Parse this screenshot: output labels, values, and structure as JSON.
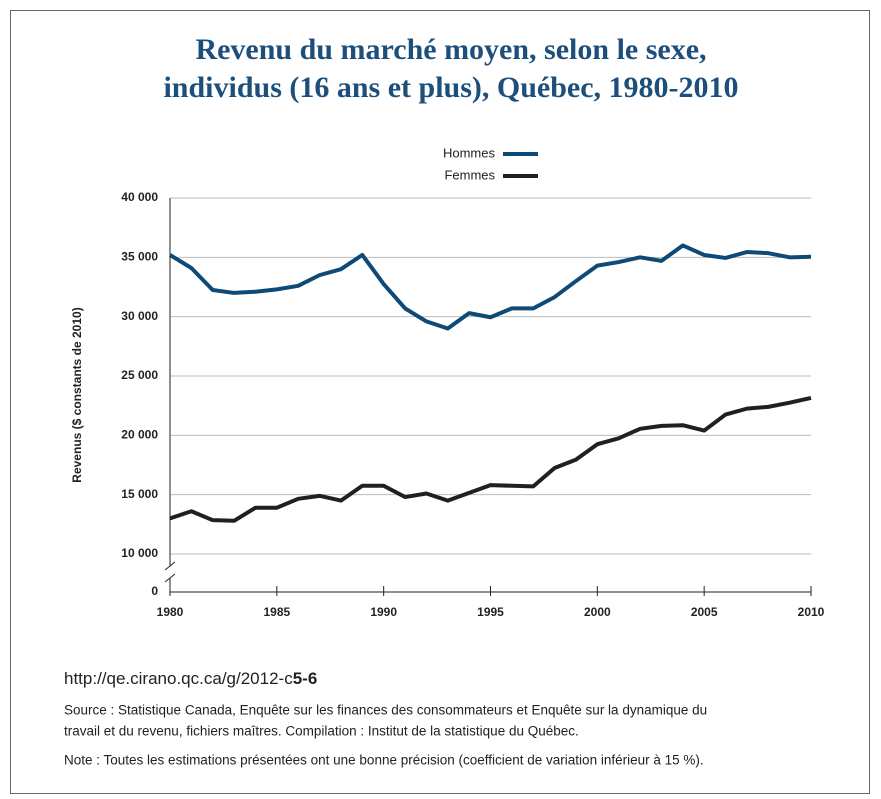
{
  "chart_data": {
    "type": "line",
    "title": [
      "Revenu du marché moyen, selon le sexe,",
      "individus (16 ans et plus), Québec, 1980-2010"
    ],
    "ylabel": "Revenus ($ constants de 2010)",
    "x": [
      1980,
      1981,
      1982,
      1983,
      1984,
      1985,
      1986,
      1987,
      1988,
      1989,
      1990,
      1991,
      1992,
      1993,
      1994,
      1995,
      1996,
      1997,
      1998,
      1999,
      2000,
      2001,
      2002,
      2003,
      2004,
      2005,
      2006,
      2007,
      2008,
      2009,
      2010
    ],
    "series": [
      {
        "name": "Hommes",
        "color": "#0e4a75",
        "values": [
          35200,
          34100,
          32250,
          32000,
          32100,
          32300,
          32600,
          33500,
          34000,
          35200,
          32750,
          30700,
          29600,
          29000,
          30300,
          29950,
          30700,
          30700,
          31650,
          33000,
          34300,
          34600,
          35000,
          34700,
          36000,
          35200,
          34950,
          35450,
          35350,
          35000,
          35050
        ]
      },
      {
        "name": "Femmes",
        "color": "#231f20",
        "values": [
          13000,
          13600,
          12850,
          12800,
          13900,
          13900,
          14650,
          14900,
          14500,
          15750,
          15750,
          14800,
          15100,
          14500,
          15150,
          15800,
          15750,
          15700,
          17250,
          17950,
          19250,
          19750,
          20550,
          20800,
          20850,
          20400,
          21750,
          22250,
          22400,
          22750,
          23150
        ]
      }
    ],
    "xlim": [
      1980,
      2010
    ],
    "xticks": [
      1980,
      1985,
      1990,
      1995,
      2000,
      2005,
      2010
    ],
    "ylim": [
      10000,
      40000
    ],
    "yticks": [
      0,
      {
        "value": 10000,
        "label": "10 000"
      },
      {
        "value": 15000,
        "label": "15 000"
      },
      {
        "value": 20000,
        "label": "20 000"
      },
      {
        "value": 25000,
        "label": "25 000"
      },
      {
        "value": 30000,
        "label": "30 000"
      },
      {
        "value": 35000,
        "label": "35 000"
      },
      {
        "value": 40000,
        "label": "40 000"
      }
    ],
    "axis_break": true,
    "grid": true,
    "legend": "top"
  },
  "footer": {
    "url": "http://qe.cirano.qc.ca/g/2012-c",
    "code": "5-6",
    "source": [
      "Source : Statistique Canada, Enquête sur les finances des consommateurs et Enquête sur la dynamique du",
      "travail et du revenu, fichiers maîtres. Compilation : Institut de la statistique du Québec."
    ],
    "note": "Note : Toutes les estimations présentées ont une bonne précision (coefficient de variation inférieur à 15 %)."
  }
}
